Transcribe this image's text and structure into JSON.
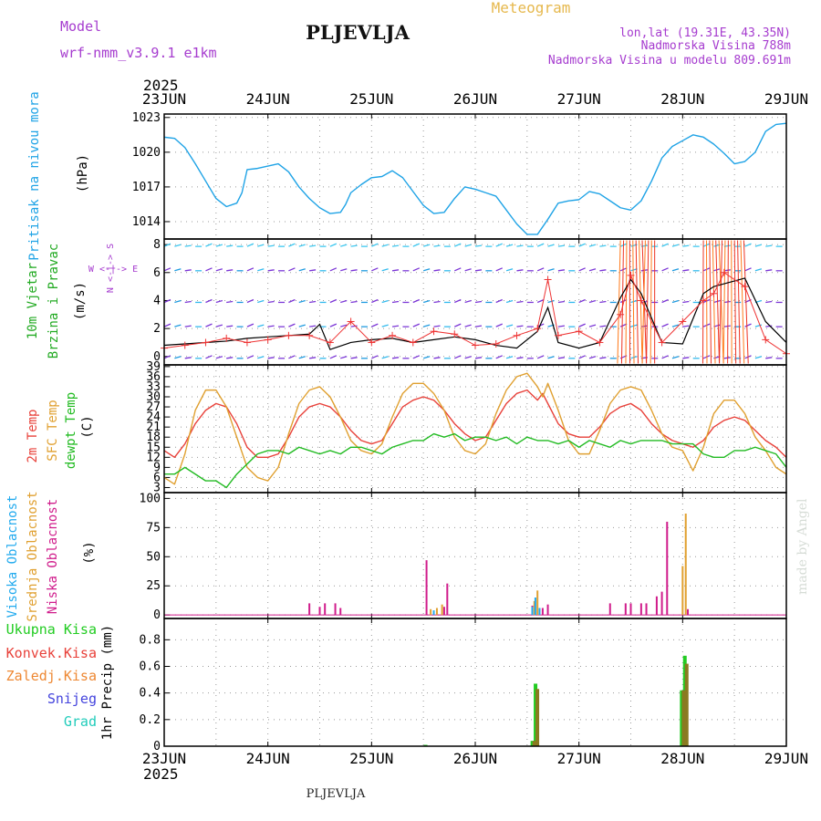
{
  "header": {
    "model_label": "Model",
    "model_name": "wrf-nmm_v3.9.1 e1km",
    "station": "PLJEVLJA",
    "meteogram": "Meteogram",
    "lonlat": "lon,lat (19.31E, 43.35N)",
    "elevation": "Nadmorska Visina 788m",
    "elevation_model": "Nadmorska Visina u modelu 809.691m",
    "year_top": "2025",
    "year_bottom": "2025",
    "footer": "PLJEVLJA",
    "credit": "made by Angel"
  },
  "colors": {
    "pressure": "#1fa3e6",
    "wind_title": "#22aa22",
    "temp2m": "#e8413a",
    "sfc": "#e0a030",
    "dew": "#22bb22",
    "cloud_high": "#22aaee",
    "cloud_mid": "#e0a030",
    "cloud_low": "#d01c8b",
    "precip_total": "#22cc22",
    "precip_conv": "#e8413a",
    "precip_frozen": "#ee8833",
    "precip_snow": "#4444dd",
    "precip_hail": "#22ccbb",
    "header_purple": "#a63ccf",
    "meteogram_orange": "#e6b84d"
  },
  "legend": {
    "wind_dir": "W <-|-> E",
    "wind_dir_vertical": "N <-|-> S",
    "precip_total": "Ukupna Kisa",
    "precip_conv": "Konvek.Kisa",
    "precip_frozen": "Zaledj.Kisa",
    "precip_snow": "Snijeg",
    "precip_hail": "Grad"
  },
  "chart_data": [
    {
      "type": "line",
      "panel": "pressure",
      "ylabel_left": "Pritisak na nivou mora",
      "ylabel_unit": "(hPa)",
      "x_ticks": [
        "23JUN",
        "24JUN",
        "25JUN",
        "26JUN",
        "27JUN",
        "28JUN",
        "29JUN"
      ],
      "ylim": [
        1012.5,
        1023.3
      ],
      "y_ticks": [
        "1014",
        "1017",
        "1020",
        "1023"
      ],
      "y_tick_values": [
        1014,
        1017,
        1020,
        1023
      ],
      "grid": true,
      "series": [
        {
          "x": [
            0,
            0.1,
            0.2,
            0.3,
            0.4,
            0.5,
            0.6,
            0.7,
            0.75,
            0.8,
            0.9,
            1.0,
            1.1,
            1.2,
            1.3,
            1.4,
            1.5,
            1.6,
            1.7,
            1.75,
            1.8,
            1.9,
            2.0,
            2.1,
            2.2,
            2.3,
            2.4,
            2.5,
            2.6,
            2.7,
            2.8,
            2.9,
            3.0,
            3.1,
            3.2,
            3.3,
            3.4,
            3.5,
            3.6,
            3.7,
            3.8,
            3.9,
            4.0,
            4.1,
            4.2,
            4.3,
            4.4,
            4.5,
            4.6,
            4.7,
            4.8,
            4.9,
            5.0,
            5.1,
            5.2,
            5.3,
            5.4,
            5.5,
            5.6,
            5.7,
            5.8,
            5.9,
            6.0
          ],
          "values": [
            1021.3,
            1021.2,
            1020.4,
            1019.0,
            1017.5,
            1016.0,
            1015.3,
            1015.6,
            1016.5,
            1018.5,
            1018.6,
            1018.8,
            1019.0,
            1018.3,
            1017.0,
            1016.0,
            1015.2,
            1014.7,
            1014.8,
            1015.5,
            1016.5,
            1017.2,
            1017.8,
            1017.9,
            1018.4,
            1017.8,
            1016.6,
            1015.4,
            1014.7,
            1014.8,
            1016.0,
            1017.0,
            1016.8,
            1016.5,
            1016.2,
            1015.0,
            1013.8,
            1012.9,
            1012.9,
            1014.2,
            1015.6,
            1015.8,
            1015.9,
            1016.6,
            1016.4,
            1015.8,
            1015.2,
            1015.0,
            1015.8,
            1017.5,
            1019.5,
            1020.5,
            1021.0,
            1021.5,
            1021.3,
            1020.7,
            1019.9,
            1019.0,
            1019.2,
            1020.0,
            1021.8,
            1022.4,
            1022.5
          ]
        }
      ]
    },
    {
      "type": "line",
      "panel": "wind",
      "ylabel_left": [
        "10m Vjetar",
        "Brzina i Pravac"
      ],
      "ylabel_unit": "(m/s)",
      "ylim": [
        -0.6,
        8.4
      ],
      "y_ticks": [
        "0",
        "2",
        "4",
        "6",
        "8"
      ],
      "y_tick_values": [
        0,
        2,
        4,
        6,
        8
      ],
      "grid": true,
      "series": [
        {
          "name": "wind speed",
          "x": [
            0,
            0.2,
            0.4,
            0.6,
            0.8,
            1.0,
            1.2,
            1.4,
            1.5,
            1.6,
            1.8,
            2.0,
            2.2,
            2.4,
            2.6,
            2.8,
            3.0,
            3.2,
            3.4,
            3.6,
            3.7,
            3.8,
            4.0,
            4.2,
            4.4,
            4.5,
            4.6,
            4.8,
            5.0,
            5.2,
            5.3,
            5.4,
            5.6,
            5.8,
            6.0
          ],
          "values": [
            0.8,
            0.9,
            1.0,
            1.1,
            1.3,
            1.4,
            1.5,
            1.6,
            2.3,
            0.5,
            1.0,
            1.2,
            1.3,
            1.0,
            1.2,
            1.4,
            1.2,
            0.8,
            0.6,
            1.8,
            3.5,
            1.0,
            0.6,
            1.0,
            4.2,
            5.5,
            4.5,
            1.0,
            0.9,
            4.5,
            5.0,
            5.2,
            5.6,
            2.5,
            1.0
          ]
        },
        {
          "name": "gusts",
          "x": [
            0,
            0.2,
            0.4,
            0.6,
            0.8,
            1.0,
            1.2,
            1.4,
            1.6,
            1.8,
            2.0,
            2.2,
            2.4,
            2.6,
            2.8,
            3.0,
            3.2,
            3.4,
            3.6,
            3.7,
            3.8,
            4.0,
            4.2,
            4.4,
            4.5,
            4.6,
            4.8,
            5.0,
            5.2,
            5.3,
            5.4,
            5.6,
            5.8,
            6.0
          ],
          "values": [
            0.6,
            0.8,
            1.0,
            1.3,
            1.0,
            1.2,
            1.5,
            1.5,
            1.0,
            2.5,
            1.0,
            1.5,
            1.0,
            1.8,
            1.6,
            0.8,
            0.9,
            1.5,
            2.0,
            5.5,
            1.5,
            1.8,
            1.0,
            3.0,
            5.8,
            4.0,
            1.0,
            2.5,
            4.0,
            4.5,
            6.0,
            5.0,
            1.2,
            0.2
          ]
        }
      ]
    },
    {
      "type": "line",
      "panel": "temperature",
      "ylabel_left": [
        "2m Temp",
        "SFC Temp",
        "dewpt Temp"
      ],
      "ylabel_unit": "(C)",
      "ylim": [
        1.5,
        39.5
      ],
      "y_ticks": [
        "3",
        "6",
        "9",
        "12",
        "15",
        "18",
        "21",
        "24",
        "27",
        "30",
        "33",
        "36",
        "39"
      ],
      "y_tick_values": [
        3,
        6,
        9,
        12,
        15,
        18,
        21,
        24,
        27,
        30,
        33,
        36,
        39
      ],
      "grid": true,
      "series": [
        {
          "name": "2m Temp",
          "x": [
            0,
            0.1,
            0.2,
            0.3,
            0.4,
            0.5,
            0.6,
            0.7,
            0.8,
            0.9,
            1.0,
            1.1,
            1.2,
            1.3,
            1.4,
            1.5,
            1.6,
            1.7,
            1.8,
            1.9,
            2.0,
            2.1,
            2.2,
            2.3,
            2.4,
            2.5,
            2.6,
            2.7,
            2.8,
            2.9,
            3.0,
            3.1,
            3.2,
            3.3,
            3.4,
            3.5,
            3.6,
            3.65,
            3.7,
            3.8,
            3.9,
            4.0,
            4.1,
            4.2,
            4.3,
            4.4,
            4.5,
            4.6,
            4.7,
            4.8,
            4.9,
            5.0,
            5.1,
            5.2,
            5.3,
            5.4,
            5.5,
            5.6,
            5.7,
            5.8,
            5.9,
            6.0
          ],
          "values": [
            14,
            12,
            16,
            22,
            26,
            28,
            27,
            22,
            15,
            12,
            12,
            13,
            18,
            24,
            27,
            28,
            27,
            24,
            20,
            17,
            16,
            17,
            22,
            27,
            29,
            30,
            29,
            26,
            22,
            19,
            17,
            18,
            23,
            28,
            31,
            32,
            29,
            31,
            28,
            22,
            19,
            18,
            18,
            21,
            25,
            27,
            28,
            26,
            22,
            19,
            17,
            16,
            15,
            17,
            21,
            23,
            24,
            23,
            20,
            17,
            15,
            12
          ]
        },
        {
          "name": "SFC Temp",
          "x": [
            0,
            0.1,
            0.2,
            0.3,
            0.4,
            0.5,
            0.6,
            0.7,
            0.8,
            0.9,
            1.0,
            1.1,
            1.2,
            1.3,
            1.4,
            1.5,
            1.6,
            1.7,
            1.8,
            1.9,
            2.0,
            2.1,
            2.2,
            2.3,
            2.4,
            2.5,
            2.6,
            2.7,
            2.8,
            2.9,
            3.0,
            3.1,
            3.2,
            3.3,
            3.4,
            3.5,
            3.6,
            3.65,
            3.7,
            3.8,
            3.9,
            4.0,
            4.1,
            4.2,
            4.3,
            4.4,
            4.5,
            4.6,
            4.7,
            4.8,
            4.9,
            5.0,
            5.1,
            5.2,
            5.3,
            5.4,
            5.5,
            5.6,
            5.7,
            5.8,
            5.9,
            6.0
          ],
          "values": [
            6,
            4,
            13,
            26,
            32,
            32,
            27,
            18,
            9,
            6,
            5,
            9,
            19,
            28,
            32,
            33,
            30,
            24,
            17,
            14,
            13,
            16,
            24,
            31,
            34,
            34,
            31,
            26,
            18,
            14,
            13,
            16,
            25,
            32,
            36,
            37,
            33,
            30,
            34,
            26,
            17,
            13,
            13,
            20,
            28,
            32,
            33,
            32,
            26,
            19,
            15,
            14,
            8,
            15,
            25,
            29,
            29,
            25,
            18,
            14,
            9,
            7
          ]
        },
        {
          "name": "dewpt Temp",
          "x": [
            0,
            0.1,
            0.2,
            0.3,
            0.4,
            0.5,
            0.6,
            0.7,
            0.8,
            0.9,
            1.0,
            1.1,
            1.2,
            1.3,
            1.4,
            1.5,
            1.6,
            1.7,
            1.8,
            1.9,
            2.0,
            2.1,
            2.2,
            2.3,
            2.4,
            2.5,
            2.6,
            2.7,
            2.8,
            2.9,
            3.0,
            3.1,
            3.2,
            3.3,
            3.4,
            3.5,
            3.6,
            3.7,
            3.8,
            3.9,
            4.0,
            4.1,
            4.2,
            4.3,
            4.4,
            4.5,
            4.6,
            4.7,
            4.8,
            4.9,
            5.0,
            5.1,
            5.2,
            5.3,
            5.4,
            5.5,
            5.6,
            5.7,
            5.8,
            5.9,
            6.0
          ],
          "values": [
            7,
            7,
            9,
            7,
            5,
            5,
            3,
            7,
            10,
            13,
            14,
            14,
            13,
            15,
            14,
            13,
            14,
            13,
            15,
            15,
            14,
            13,
            15,
            16,
            17,
            17,
            19,
            18,
            19,
            17,
            18,
            18,
            17,
            18,
            16,
            18,
            17,
            17,
            16,
            17,
            15,
            17,
            16,
            15,
            17,
            16,
            17,
            17,
            17,
            16,
            16,
            16,
            13,
            12,
            12,
            14,
            14,
            15,
            14,
            13,
            9
          ]
        }
      ]
    },
    {
      "type": "bar",
      "panel": "clouds",
      "ylabel_left": [
        "Visoka Oblacnost",
        "Srednja Oblacnost",
        "Niska Oblacnost"
      ],
      "ylabel_unit": "(%)",
      "ylim": [
        -3,
        105
      ],
      "y_ticks": [
        "0",
        "25",
        "50",
        "75",
        "100"
      ],
      "y_tick_values": [
        0,
        25,
        50,
        75,
        100
      ],
      "grid": true,
      "series": [
        {
          "name": "Niska Oblacnost",
          "x": [
            1.4,
            1.5,
            1.55,
            1.65,
            1.7,
            2.53,
            2.7,
            2.73,
            3.55,
            3.65,
            3.7,
            4.3,
            4.45,
            4.5,
            4.6,
            4.65,
            4.75,
            4.8,
            4.85,
            5.05
          ],
          "values": [
            10,
            7,
            10,
            10,
            6,
            47,
            7,
            27,
            8,
            6,
            9,
            10,
            10,
            10,
            10,
            10,
            16,
            20,
            80,
            5
          ]
        },
        {
          "name": "Srednja Oblacnost",
          "x": [
            2.57,
            2.63,
            2.68,
            3.57,
            3.6,
            5.0,
            5.03
          ],
          "values": [
            5,
            6,
            9,
            12,
            21,
            42,
            87
          ]
        },
        {
          "name": "Visoka Oblacnost",
          "x": [
            2.6,
            3.55,
            3.58,
            3.62
          ],
          "values": [
            4,
            7,
            15,
            6
          ]
        }
      ]
    },
    {
      "type": "bar",
      "panel": "precip",
      "ylabel_left": "1hr Precip (mm)",
      "ylim": [
        0,
        0.96
      ],
      "y_ticks": [
        "0",
        "0.2",
        "0.4",
        "0.6",
        "0.8"
      ],
      "y_tick_values": [
        0,
        0.2,
        0.4,
        0.6,
        0.8
      ],
      "grid": true,
      "x_ticks": [
        "23JUN",
        "24JUN",
        "25JUN",
        "26JUN",
        "27JUN",
        "28JUN",
        "29JUN"
      ],
      "series": [
        {
          "name": "Ukupna Kisa",
          "x": [
            2.53,
            3.56,
            3.59,
            5.0,
            5.03
          ],
          "values": [
            0.01,
            0.04,
            0.47,
            0.42,
            0.68
          ]
        },
        {
          "name": "Zaledj.Kisa",
          "x": [
            3.56,
            3.59,
            5.0,
            5.03
          ],
          "values": [
            0.04,
            0.43,
            0.42,
            0.62
          ]
        }
      ]
    }
  ]
}
